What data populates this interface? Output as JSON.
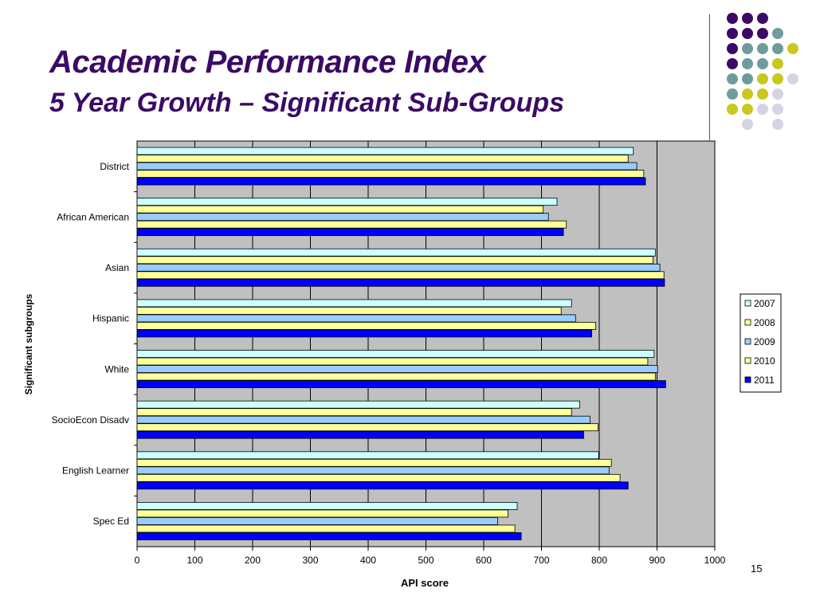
{
  "slide": {
    "title": "Academic Performance Index",
    "subtitle": "5 Year Growth – Significant Sub-Groups",
    "page_number": "15",
    "colors": {
      "title": "#3b0a66",
      "plot_bg": "#c0c0c0",
      "dot_purple": "#3b0a66",
      "dot_teal": "#6e9c9c",
      "dot_yellow": "#c8c820",
      "dot_lavender": "#d4d4e4"
    }
  },
  "chart_data": {
    "type": "bar",
    "orientation": "horizontal",
    "title": "",
    "xlabel": "API score",
    "ylabel": "Significant subgroups",
    "xlim": [
      0,
      1000
    ],
    "xticks": [
      0,
      100,
      200,
      300,
      400,
      500,
      600,
      700,
      800,
      900,
      1000
    ],
    "grid": true,
    "legend_position": "right",
    "categories": [
      "District",
      "African American",
      "Asian",
      "Hispanic",
      "White",
      "SocioEcon Disadv",
      "English Learner",
      "Spec Ed"
    ],
    "series": [
      {
        "name": "2007",
        "color": "#ccffff",
        "values": [
          859,
          727,
          897,
          752,
          895,
          766,
          799,
          658
        ]
      },
      {
        "name": "2008",
        "color": "#ffff99",
        "values": [
          850,
          703,
          893,
          734,
          884,
          752,
          821,
          642
        ]
      },
      {
        "name": "2009",
        "color": "#99ccff",
        "values": [
          865,
          712,
          905,
          759,
          901,
          784,
          817,
          624
        ]
      },
      {
        "name": "2010",
        "color": "#ffff99",
        "values": [
          877,
          743,
          912,
          794,
          897,
          798,
          836,
          654
        ]
      },
      {
        "name": "2011",
        "color": "#0000ff",
        "values": [
          880,
          738,
          913,
          787,
          915,
          773,
          850,
          665
        ]
      }
    ]
  }
}
